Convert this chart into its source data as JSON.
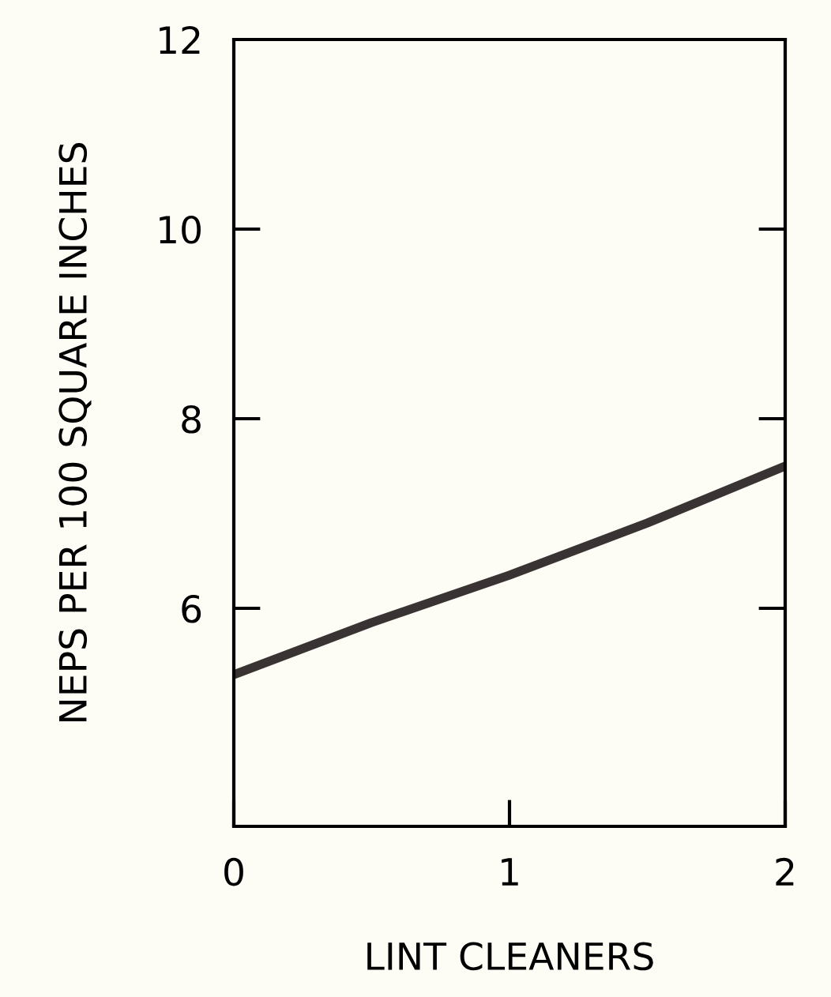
{
  "chart_data": {
    "type": "line",
    "xlabel": "LINT CLEANERS",
    "ylabel": "NEPS PER 100 SQUARE INCHES",
    "x": [
      0,
      0.5,
      1,
      1.5,
      2
    ],
    "series": [
      {
        "color": "#3a3333",
        "values": [
          5.3,
          5.85,
          6.35,
          6.9,
          7.5
        ]
      }
    ],
    "xlim": [
      0,
      2
    ],
    "xticks": [
      0,
      1,
      2
    ],
    "ylim": [
      3.7,
      12
    ],
    "yticks": [
      6,
      8,
      10,
      12
    ],
    "grid": false,
    "legend": false,
    "marker": "none",
    "line_style": "solid"
  }
}
